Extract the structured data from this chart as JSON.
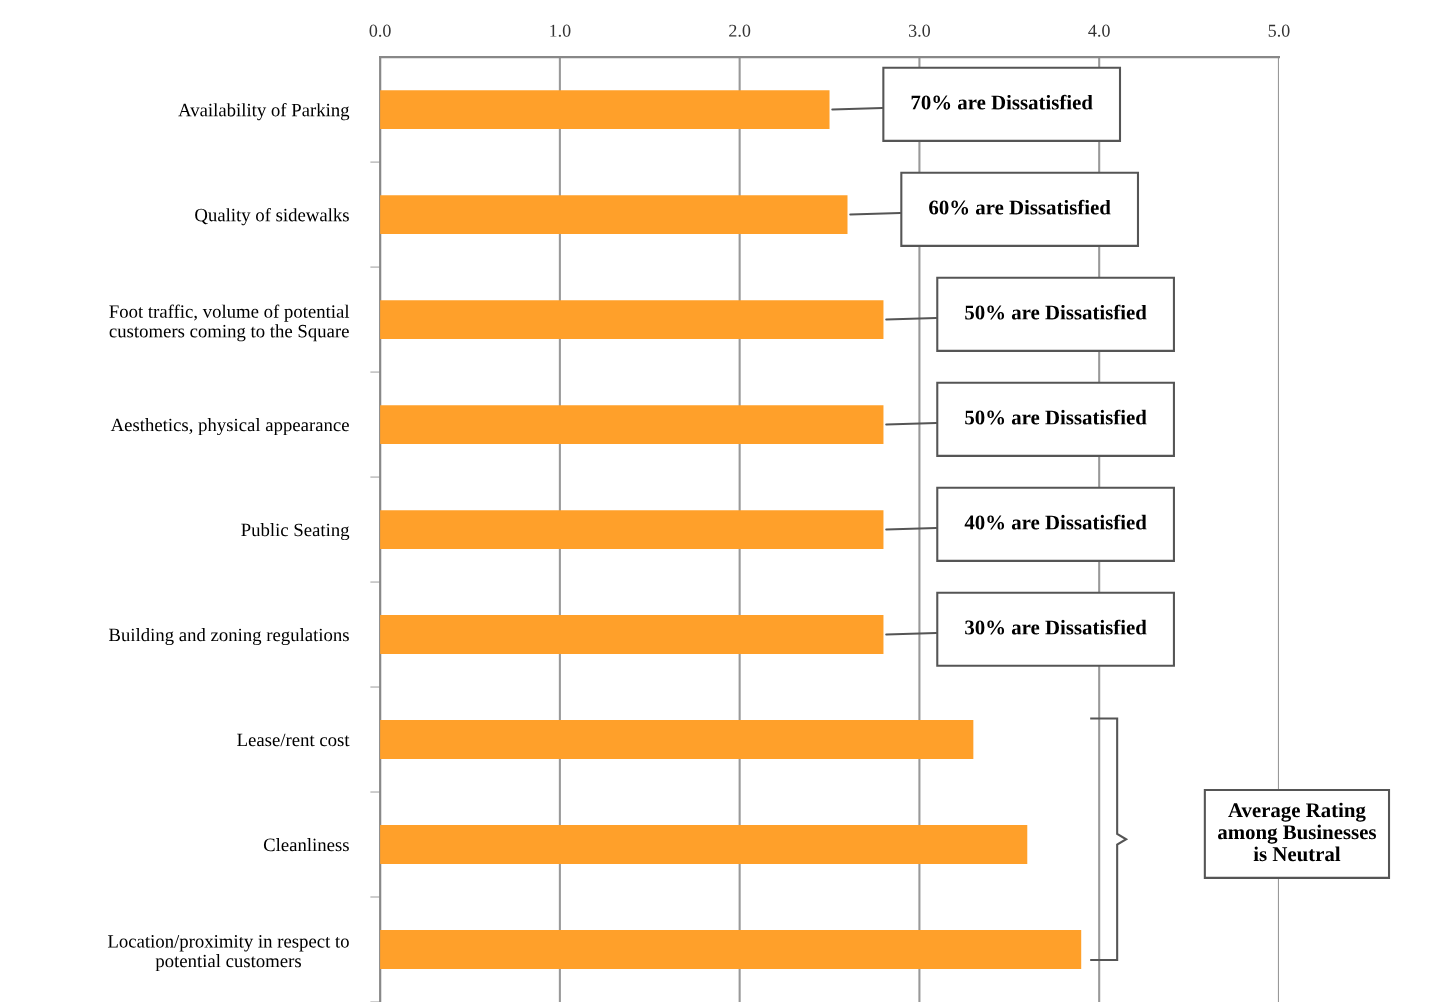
{
  "chart_data": {
    "type": "bar",
    "orientation": "horizontal",
    "categories": [
      "Availability of Parking",
      "Quality of sidewalks",
      "Foot traffic, volume of potential\ncustomers coming to the Square",
      "Aesthetics, physical appearance",
      "Public Seating",
      "Building and zoning regulations",
      "Lease/rent cost",
      "Cleanliness",
      "Location/proximity in respect to\npotential customers"
    ],
    "values": [
      2.5,
      2.6,
      2.8,
      2.8,
      2.8,
      2.8,
      3.3,
      3.6,
      3.9
    ],
    "color": "#ffa02a",
    "xlim": [
      0,
      5
    ],
    "xticks": [
      {
        "value": 0,
        "label": "0.0"
      },
      {
        "value": 1,
        "label": "1.0"
      },
      {
        "value": 2,
        "label": "2.0"
      },
      {
        "value": 3,
        "label": "3.0"
      },
      {
        "value": 4,
        "label": "4.0"
      },
      {
        "value": 5,
        "label": "5.0"
      }
    ],
    "grid": "x",
    "annotations": [
      "70% are Dissatisfied",
      "60% are Dissatisfied",
      "50% are Dissatisfied",
      "50% are Dissatisfied",
      "40% are Dissatisfied",
      "30% are Dissatisfied",
      "Average Rating\namong Businesses\nis Neutral"
    ]
  }
}
